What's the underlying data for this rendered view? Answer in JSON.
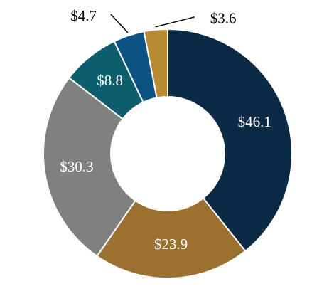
{
  "chart_data": {
    "type": "donut",
    "categories": [
      null,
      null,
      null,
      null,
      null,
      null
    ],
    "values": [
      46.1,
      23.9,
      30.3,
      8.8,
      4.7,
      3.6
    ],
    "value_labels": [
      "$46.1",
      "$23.9",
      "$30.3",
      "$8.8",
      "$4.7",
      "$3.6"
    ],
    "colors": [
      "#0b2a45",
      "#9c7130",
      "#808080",
      "#0d5f6e",
      "#0b5382",
      "#b88c35"
    ]
  }
}
